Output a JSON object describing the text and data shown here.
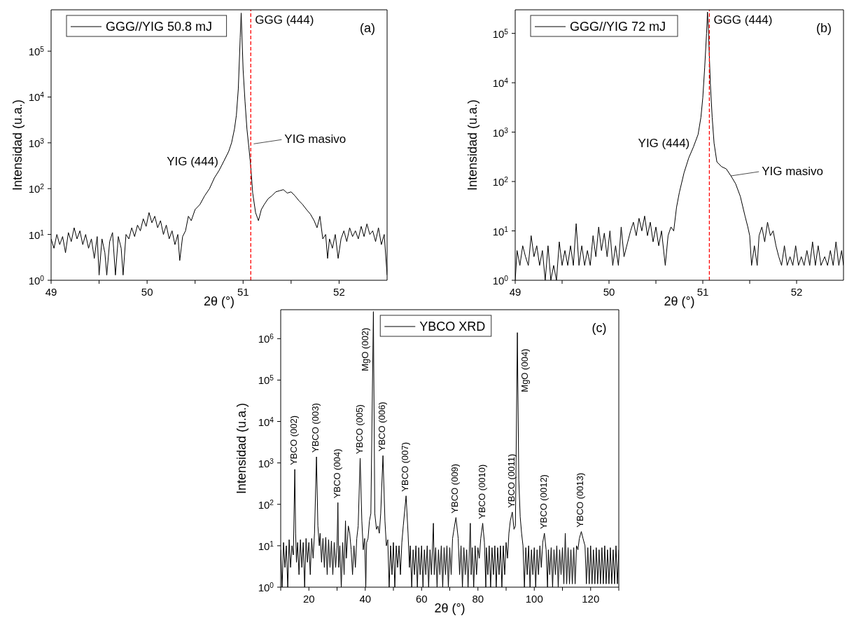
{
  "chart_data": [
    {
      "type": "line",
      "xlabel": "2θ (°)",
      "ylabel": "Intensidad (u.a.)",
      "log": "y",
      "legend": "top left",
      "xlim": [
        49,
        52.5
      ],
      "xticks": [
        49,
        {
          "value": 49.5,
          "label": null
        },
        50,
        {
          "value": 50.5,
          "label": null
        },
        51,
        {
          "value": 51.5,
          "label": null
        },
        52
      ],
      "ylim": [
        1,
        800000
      ],
      "yticks": [
        {
          "value": 1,
          "label": "10$^{0}$"
        },
        {
          "value": 10,
          "label": "10$^{1}$"
        },
        {
          "value": 100,
          "label": "10$^{2}$"
        },
        {
          "value": 1000,
          "label": "10$^{3}$"
        },
        {
          "value": 10000,
          "label": "10$^{4}$"
        },
        {
          "value": 100000,
          "label": "10$^{5}$"
        }
      ],
      "x": [
        49.0,
        49.03,
        49.06,
        49.09,
        49.12,
        49.15,
        49.18,
        49.21,
        49.24,
        49.27,
        49.3,
        49.33,
        49.36,
        49.39,
        49.42,
        49.45,
        49.48,
        49.5,
        49.53,
        49.56,
        49.58,
        49.61,
        49.64,
        49.67,
        49.7,
        49.73,
        49.75,
        49.78,
        49.81,
        49.84,
        49.87,
        49.9,
        49.93,
        49.96,
        49.99,
        50.02,
        50.05,
        50.08,
        50.11,
        50.14,
        50.17,
        50.2,
        50.23,
        50.26,
        50.29,
        50.32,
        50.34,
        50.37,
        50.4,
        50.43,
        50.46,
        50.5,
        50.55,
        50.6,
        50.65,
        50.7,
        50.75,
        50.8,
        50.85,
        50.88,
        50.91,
        50.93,
        50.95,
        50.97,
        50.98,
        51.0,
        51.02,
        51.04,
        51.06,
        51.08,
        51.1,
        51.13,
        51.16,
        51.19,
        51.22,
        51.26,
        51.3,
        51.34,
        51.38,
        51.42,
        51.46,
        51.5,
        51.54,
        51.58,
        51.62,
        51.66,
        51.7,
        51.74,
        51.77,
        51.8,
        51.83,
        51.86,
        51.88,
        51.9,
        51.93,
        51.96,
        51.99,
        52.02,
        52.05,
        52.08,
        52.11,
        52.14,
        52.17,
        52.2,
        52.23,
        52.26,
        52.29,
        52.32,
        52.35,
        52.38,
        52.41,
        52.44,
        52.47,
        52.5
      ],
      "series": [
        {
          "name": "GGG//YIG 50.8 mJ",
          "color": "#000000",
          "values": [
            8,
            5,
            10,
            6,
            9,
            4,
            11,
            7,
            14,
            8,
            12,
            6,
            10,
            5,
            8,
            3,
            9,
            1.3,
            8,
            4,
            1.3,
            7,
            11,
            1.3,
            9,
            5,
            1.3,
            10,
            8,
            14,
            9,
            16,
            12,
            22,
            15,
            30,
            18,
            25,
            14,
            20,
            10,
            16,
            8,
            12,
            6,
            10,
            2.7,
            9,
            12,
            25,
            20,
            35,
            45,
            70,
            100,
            170,
            250,
            400,
            650,
            1000,
            2000,
            4000,
            15000,
            200000,
            680000,
            40000,
            8000,
            2000,
            800,
            300,
            80,
            30,
            20,
            35,
            45,
            60,
            70,
            85,
            90,
            95,
            80,
            85,
            70,
            55,
            45,
            35,
            28,
            20,
            14,
            25,
            8,
            10,
            3,
            8,
            5,
            10,
            3,
            8,
            12,
            7,
            14,
            9,
            12,
            8,
            15,
            9,
            17,
            10,
            12,
            7,
            14,
            6,
            10,
            1.3
          ]
        }
      ],
      "ref_lines": [
        {
          "axis": "x",
          "value": 51.08,
          "label": "GGG (444)",
          "color": "#ff0000",
          "line_style": "dashed"
        }
      ],
      "annotations": [
        {
          "text": "YIG (444)",
          "x": 50.8,
          "y": 400
        },
        {
          "text": "YIG masivo",
          "x": 51.11,
          "y": 950
        },
        "(a)"
      ]
    },
    {
      "type": "line",
      "xlabel": "2θ (°)",
      "ylabel": "Intensidad (u.a.)",
      "log": "y",
      "legend": "top left",
      "xlim": [
        49,
        52.5
      ],
      "xticks": [
        49,
        {
          "value": 49.5,
          "label": null
        },
        50,
        {
          "value": 50.5,
          "label": null
        },
        51,
        {
          "value": 51.5,
          "label": null
        },
        52
      ],
      "ylim": [
        1,
        300000
      ],
      "yticks": [
        {
          "value": 1,
          "label": "10$^{0}$"
        },
        {
          "value": 10,
          "label": "10$^{1}$"
        },
        {
          "value": 100,
          "label": "10$^{2}$"
        },
        {
          "value": 1000,
          "label": "10$^{3}$"
        },
        {
          "value": 10000,
          "label": "10$^{4}$"
        },
        {
          "value": 100000,
          "label": "10$^{5}$"
        }
      ],
      "x": [
        49.0,
        49.02,
        49.05,
        49.08,
        49.11,
        49.14,
        49.17,
        49.2,
        49.23,
        49.26,
        49.29,
        49.32,
        49.35,
        49.38,
        49.41,
        49.44,
        49.47,
        49.5,
        49.53,
        49.56,
        49.59,
        49.62,
        49.65,
        49.68,
        49.71,
        49.74,
        49.77,
        49.8,
        49.83,
        49.86,
        49.89,
        49.92,
        49.95,
        49.98,
        50.01,
        50.04,
        50.07,
        50.1,
        50.13,
        50.16,
        50.2,
        50.23,
        50.26,
        50.29,
        50.32,
        50.35,
        50.38,
        50.41,
        50.44,
        50.47,
        50.5,
        50.53,
        50.56,
        50.6,
        50.63,
        50.66,
        50.69,
        50.72,
        50.75,
        50.8,
        50.85,
        50.9,
        50.95,
        50.98,
        51.0,
        51.02,
        51.04,
        51.05,
        51.06,
        51.08,
        51.1,
        51.12,
        51.15,
        51.2,
        51.25,
        51.3,
        51.35,
        51.4,
        51.45,
        51.48,
        51.5,
        51.52,
        51.55,
        51.58,
        51.6,
        51.63,
        51.66,
        51.69,
        51.72,
        51.75,
        51.78,
        51.81,
        51.84,
        51.87,
        51.9,
        51.93,
        51.96,
        51.99,
        52.02,
        52.05,
        52.08,
        52.11,
        52.14,
        52.17,
        52.2,
        52.23,
        52.26,
        52.3,
        52.33,
        52.36,
        52.39,
        52.42,
        52.45,
        52.48,
        52.5
      ],
      "series": [
        {
          "name": "GGG//YIG 72 mJ",
          "color": "#000000",
          "values": [
            1,
            4,
            2,
            5,
            3,
            2,
            8,
            3,
            5,
            2,
            4,
            1,
            5,
            1,
            2,
            1,
            6,
            2,
            4,
            2,
            5,
            2,
            14,
            2,
            5,
            2,
            4,
            2,
            8,
            3,
            12,
            4,
            9,
            3,
            10,
            2,
            5,
            2,
            12,
            3,
            6,
            10,
            15,
            8,
            18,
            10,
            20,
            8,
            15,
            6,
            12,
            5,
            10,
            2,
            8,
            12,
            10,
            30,
            60,
            150,
            300,
            500,
            900,
            2000,
            5000,
            20000,
            100000,
            270000,
            120000,
            10000,
            2000,
            600,
            250,
            200,
            180,
            130,
            90,
            50,
            20,
            12,
            8,
            2,
            5,
            2,
            8,
            12,
            6,
            15,
            8,
            10,
            5,
            3,
            2,
            5,
            2,
            3,
            2,
            5,
            2,
            3,
            2,
            4,
            2,
            6,
            2,
            5,
            2,
            3,
            2,
            4,
            2,
            6,
            2,
            4,
            2
          ]
        }
      ],
      "ref_lines": [
        {
          "axis": "x",
          "value": 51.07,
          "label": "GGG (444)",
          "color": "#ff0000",
          "line_style": "dashed"
        }
      ],
      "annotations": [
        {
          "text": "YIG (444)",
          "x": 50.92,
          "y": 600
        },
        {
          "text": "YIG masivo",
          "x": 51.3,
          "y": 130
        },
        "(b)"
      ]
    },
    {
      "type": "line",
      "xlabel": "2θ (°)",
      "ylabel": "Intensidad (u.a.)",
      "log": "y",
      "legend": "top",
      "xlim": [
        10,
        130
      ],
      "xticks": [
        {
          "value": 10,
          "label": null
        },
        20,
        {
          "value": 30,
          "label": null
        },
        40,
        {
          "value": 50,
          "label": null
        },
        60,
        {
          "value": 70,
          "label": null
        },
        80,
        {
          "value": 90,
          "label": null
        },
        100,
        {
          "value": 110,
          "label": null
        },
        120,
        {
          "value": 130,
          "label": null
        }
      ],
      "ylim": [
        1,
        5000000
      ],
      "yticks": [
        {
          "value": 1,
          "label": "10$^{0}$"
        },
        {
          "value": 10,
          "label": "10$^{1}$"
        },
        {
          "value": 100,
          "label": "10$^{2}$"
        },
        {
          "value": 1000,
          "label": "10$^{3}$"
        },
        {
          "value": 10000,
          "label": "10$^{4}$"
        },
        {
          "value": 100000,
          "label": "10$^{5}$"
        },
        {
          "value": 1000000,
          "label": "10$^{6}$"
        }
      ],
      "x": [
        10,
        10.5,
        11,
        11.5,
        12,
        12.5,
        13,
        13.5,
        14,
        14.5,
        15,
        15.3,
        15.6,
        16,
        16.5,
        17,
        17.5,
        18,
        18.5,
        19,
        19.5,
        20,
        20.5,
        21,
        21.5,
        22,
        22.7,
        23.2,
        23.7,
        24,
        24.5,
        25,
        25.5,
        26,
        26.5,
        27,
        27.5,
        28,
        28.5,
        29,
        29.5,
        30,
        30.3,
        30.6,
        31,
        31.5,
        32,
        32.5,
        33,
        33.3,
        34,
        34.5,
        35,
        35.5,
        36,
        36.5,
        37,
        37.5,
        38.2,
        38.8,
        39.3,
        39.8,
        40.2,
        40.5,
        41,
        41.5,
        42,
        42.9,
        43.4,
        44,
        44.5,
        45,
        45.5,
        46.3,
        47,
        47.5,
        48,
        48.5,
        49,
        49.5,
        50,
        50.5,
        51,
        51.5,
        52,
        52.5,
        53,
        53.5,
        54.5,
        55.2,
        55.7,
        56,
        56.5,
        57,
        57.5,
        58,
        58.5,
        59,
        59.5,
        60,
        60.5,
        61,
        61.5,
        62,
        62.5,
        63,
        63.5,
        64.2,
        64.5,
        65,
        65.5,
        66,
        66.5,
        67,
        67.5,
        68,
        68.5,
        69,
        69.5,
        70,
        70.5,
        71,
        71.5,
        72.2,
        73,
        73.5,
        74,
        74.5,
        75,
        75.5,
        76,
        76.5,
        77.3,
        77.6,
        78,
        78.5,
        79,
        79.5,
        80,
        80.5,
        81,
        81.7,
        82.3,
        82.8,
        83,
        83.5,
        84,
        84.5,
        85,
        85.5,
        86,
        86.5,
        87,
        87.5,
        88,
        88.5,
        89,
        89.5,
        90,
        90.5,
        91,
        91.5,
        92.2,
        92.8,
        93.3,
        94,
        94.5,
        95,
        95.5,
        96,
        96.5,
        97,
        97.5,
        98,
        98.5,
        99,
        99.5,
        100,
        100.5,
        101,
        101.5,
        102,
        102.5,
        103,
        103.6,
        104.2,
        104.7,
        105,
        105.5,
        106,
        106.5,
        107,
        107.5,
        108,
        108.5,
        109,
        109.5,
        110,
        110.5,
        111,
        111.5,
        112,
        112.5,
        113,
        113.5,
        114,
        114.5,
        115,
        115.5,
        116,
        116.7,
        117.3,
        118,
        118.5,
        119,
        119.5,
        120,
        120.5,
        121,
        121.5,
        122,
        122.5,
        123,
        123.5,
        124,
        124.5,
        125,
        125.5,
        126,
        126.5,
        127,
        127.5,
        128,
        128.5,
        129,
        129.5,
        130
      ],
      "series": [
        {
          "name": "YBCO XRD",
          "color": "#000000",
          "values": [
            8,
            1,
            12,
            3,
            10,
            1,
            14,
            3,
            10,
            6,
            700,
            20,
            4,
            12,
            2,
            14,
            3,
            12,
            1,
            15,
            4,
            12,
            2,
            15,
            5,
            20,
            1400,
            30,
            10,
            20,
            4,
            15,
            3,
            16,
            2,
            14,
            3,
            13,
            2,
            12,
            3,
            10,
            110,
            3,
            10,
            1,
            12,
            2,
            40,
            5,
            30,
            20,
            8,
            2,
            10,
            3,
            15,
            30,
            1300,
            40,
            8,
            15,
            1,
            12,
            15,
            40,
            60,
            4500000,
            60,
            25,
            30,
            20,
            60,
            1500,
            40,
            10,
            14,
            1,
            10,
            2,
            12,
            1,
            10,
            3,
            10,
            2,
            12,
            30,
            160,
            20,
            3,
            10,
            1,
            8,
            2,
            10,
            1,
            9,
            2,
            10,
            1,
            8,
            2,
            10,
            1,
            8,
            2,
            35,
            2,
            9,
            1,
            8,
            2,
            10,
            1,
            9,
            2,
            10,
            1,
            9,
            2,
            15,
            25,
            48,
            15,
            2,
            10,
            1,
            9,
            2,
            8,
            1,
            35,
            2,
            9,
            1,
            10,
            2,
            9,
            5,
            15,
            35,
            12,
            1,
            9,
            2,
            10,
            1,
            9,
            2,
            10,
            1,
            9,
            2,
            10,
            1,
            10,
            2,
            12,
            5,
            20,
            40,
            65,
            25,
            30,
            1400000,
            400,
            50,
            20,
            10,
            1,
            9,
            2,
            10,
            1,
            8,
            2,
            9,
            1,
            8,
            2,
            10,
            3,
            12,
            20,
            8,
            1,
            8,
            2,
            9,
            1,
            8,
            2,
            10,
            1,
            8,
            2,
            9,
            1.2,
            20,
            1.2,
            9,
            1.2,
            8,
            1.2,
            9,
            1.2,
            10,
            8,
            15,
            22,
            15,
            10,
            1.2,
            9,
            1.2,
            10,
            1.2,
            8,
            1.2,
            9,
            1.2,
            8,
            1.2,
            9,
            1.2,
            10,
            1.2,
            8,
            1.2,
            9,
            1.2,
            8,
            1.2,
            10,
            1.2,
            8
          ]
        }
      ],
      "annotations": [
        {
          "text": "YBCO (002)",
          "x": 15,
          "y": 700
        },
        {
          "text": "YBCO (003)",
          "x": 22.7,
          "y": 1400
        },
        {
          "text": "YBCO (004)",
          "x": 30.3,
          "y": 110
        },
        {
          "text": "YBCO (005)",
          "x": 38.2,
          "y": 1300
        },
        {
          "text": "MgO (002)",
          "x": 42.9,
          "y": 4500000
        },
        {
          "text": "YBCO (006)",
          "x": 46.3,
          "y": 1500
        },
        {
          "text": "YBCO (007)",
          "x": 54.5,
          "y": 160
        },
        {
          "text": "YBCO (009)",
          "x": 72.2,
          "y": 48
        },
        {
          "text": "YBCO (0010)",
          "x": 81.7,
          "y": 35
        },
        {
          "text": "YBCO (0011)",
          "x": 92.2,
          "y": 65
        },
        {
          "text": "MgO (004)",
          "x": 94,
          "y": 1400000
        },
        {
          "text": "YBCO (0012)",
          "x": 103.6,
          "y": 20
        },
        {
          "text": "YBCO (0013)",
          "x": 116.7,
          "y": 22
        },
        "(c)"
      ]
    }
  ]
}
